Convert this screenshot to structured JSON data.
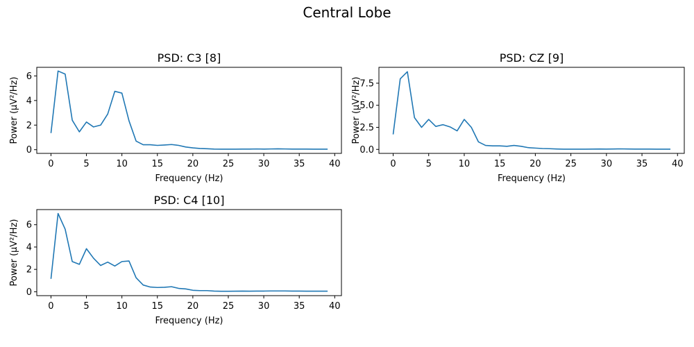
{
  "figure": {
    "title": "Central Lobe"
  },
  "chart_data": [
    {
      "type": "line",
      "title": "PSD: C3 [8]",
      "xlabel": "Frequency (Hz)",
      "ylabel": "Power (μV²/Hz)",
      "xlim": [
        -2,
        40.95
      ],
      "ylim": [
        -0.3,
        6.7
      ],
      "xticks": [
        0,
        5,
        10,
        15,
        20,
        25,
        30,
        35,
        40
      ],
      "xtick_labels": [
        "0",
        "5",
        "10",
        "15",
        "20",
        "25",
        "30",
        "35",
        "40"
      ],
      "yticks": [
        0,
        2,
        4,
        6
      ],
      "ytick_labels": [
        "0",
        "2",
        "4",
        "6"
      ],
      "grid": false,
      "series": [
        {
          "color": "#1f77b4",
          "x": [
            0,
            1,
            2,
            3,
            4,
            5,
            6,
            7,
            8,
            9,
            10,
            11,
            12,
            13,
            14,
            15,
            16,
            17,
            18,
            19,
            20,
            21,
            22,
            23,
            24,
            25,
            26,
            27,
            28,
            29,
            30,
            31,
            32,
            33,
            34,
            35,
            36,
            37,
            38,
            39
          ],
          "values": [
            1.35,
            6.4,
            6.15,
            2.4,
            1.45,
            2.25,
            1.85,
            2.0,
            2.9,
            4.75,
            4.6,
            2.35,
            0.7,
            0.4,
            0.4,
            0.35,
            0.38,
            0.42,
            0.35,
            0.22,
            0.15,
            0.1,
            0.08,
            0.05,
            0.04,
            0.04,
            0.04,
            0.05,
            0.05,
            0.06,
            0.05,
            0.06,
            0.07,
            0.06,
            0.05,
            0.05,
            0.05,
            0.04,
            0.04,
            0.04
          ]
        }
      ]
    },
    {
      "type": "line",
      "title": "PSD: CZ [9]",
      "xlabel": "Frequency (Hz)",
      "ylabel": "Power (μV²/Hz)",
      "xlim": [
        -2,
        40.95
      ],
      "ylim": [
        -0.45,
        9.3
      ],
      "xticks": [
        0,
        5,
        10,
        15,
        20,
        25,
        30,
        35,
        40
      ],
      "xtick_labels": [
        "0",
        "5",
        "10",
        "15",
        "20",
        "25",
        "30",
        "35",
        "40"
      ],
      "yticks": [
        0,
        2.5,
        5,
        7.5
      ],
      "ytick_labels": [
        "0.0",
        "2.5",
        "5.0",
        "7.5"
      ],
      "grid": false,
      "series": [
        {
          "color": "#1f77b4",
          "x": [
            0,
            1,
            2,
            3,
            4,
            5,
            6,
            7,
            8,
            9,
            10,
            11,
            12,
            13,
            14,
            15,
            16,
            17,
            18,
            19,
            20,
            21,
            22,
            23,
            24,
            25,
            26,
            27,
            28,
            29,
            30,
            31,
            32,
            33,
            34,
            35,
            36,
            37,
            38,
            39
          ],
          "values": [
            1.7,
            8.0,
            8.8,
            3.6,
            2.5,
            3.4,
            2.6,
            2.8,
            2.55,
            2.1,
            3.4,
            2.5,
            0.85,
            0.45,
            0.4,
            0.4,
            0.35,
            0.45,
            0.35,
            0.2,
            0.15,
            0.1,
            0.08,
            0.05,
            0.03,
            0.03,
            0.03,
            0.03,
            0.04,
            0.05,
            0.04,
            0.05,
            0.06,
            0.05,
            0.04,
            0.04,
            0.04,
            0.03,
            0.03,
            0.03
          ]
        }
      ]
    },
    {
      "type": "line",
      "title": "PSD: C4 [10]",
      "xlabel": "Frequency (Hz)",
      "ylabel": "Power (μV²/Hz)",
      "xlim": [
        -2,
        40.95
      ],
      "ylim": [
        -0.35,
        7.35
      ],
      "xticks": [
        0,
        5,
        10,
        15,
        20,
        25,
        30,
        35,
        40
      ],
      "xtick_labels": [
        "0",
        "5",
        "10",
        "15",
        "20",
        "25",
        "30",
        "35",
        "40"
      ],
      "yticks": [
        0,
        2,
        4,
        6
      ],
      "ytick_labels": [
        "0",
        "2",
        "4",
        "6"
      ],
      "grid": false,
      "series": [
        {
          "color": "#1f77b4",
          "x": [
            0,
            1,
            2,
            3,
            4,
            5,
            6,
            7,
            8,
            9,
            10,
            11,
            12,
            13,
            14,
            15,
            16,
            17,
            18,
            19,
            20,
            21,
            22,
            23,
            24,
            25,
            26,
            27,
            28,
            29,
            30,
            31,
            32,
            33,
            34,
            35,
            36,
            37,
            38,
            39
          ],
          "values": [
            1.15,
            7.0,
            5.6,
            2.7,
            2.45,
            3.85,
            3.0,
            2.35,
            2.65,
            2.3,
            2.7,
            2.75,
            1.25,
            0.6,
            0.42,
            0.38,
            0.4,
            0.45,
            0.3,
            0.25,
            0.13,
            0.1,
            0.1,
            0.06,
            0.04,
            0.04,
            0.05,
            0.06,
            0.05,
            0.06,
            0.06,
            0.07,
            0.07,
            0.07,
            0.06,
            0.06,
            0.05,
            0.05,
            0.05,
            0.05
          ]
        }
      ]
    }
  ]
}
